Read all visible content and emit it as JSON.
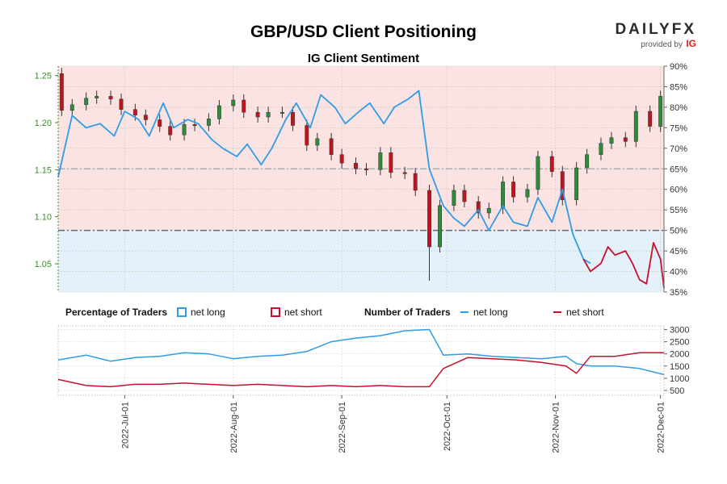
{
  "header": {
    "title": "GBP/USD Client Positioning",
    "subtitle": "IG Client Sentiment",
    "logo_text": "DAILYFX",
    "logo_provided": "provided by",
    "logo_ig": "IG"
  },
  "legend": {
    "pct_heading": "Percentage of Traders",
    "pct_long": "net long",
    "pct_short": "net short",
    "num_heading": "Number of Traders",
    "num_long": "net long",
    "num_short": "net short"
  },
  "colors": {
    "long": "#2e9ce6",
    "short": "#c8102e",
    "candle_up": "#2e8b3a",
    "candle_down": "#c0151f",
    "short_zone": "#fbe3e3",
    "long_zone": "#e4f1fb",
    "price_axis": "#3d8c2b"
  },
  "chart_data": [
    {
      "type": "candlestick+line",
      "title": "IG Client Sentiment",
      "price_axis": {
        "ticks": [
          "1.05",
          "1.10",
          "1.15",
          "1.20",
          "1.25"
        ],
        "ylim": [
          1.02,
          1.26
        ]
      },
      "pct_axis": {
        "ticks": [
          "35%",
          "40%",
          "45%",
          "50%",
          "55%",
          "60%",
          "65%",
          "70%",
          "75%",
          "80%",
          "85%",
          "90%"
        ],
        "ylim": [
          35,
          90
        ]
      },
      "reference_lines": [
        50,
        65
      ],
      "x_range": [
        "2022-06-12",
        "2022-12-02"
      ],
      "x_ticks": [
        "2022-Jul-01",
        "2022-Aug-01",
        "2022-Sep-01",
        "2022-Oct-01",
        "2022-Nov-01",
        "2022-Dec-01"
      ],
      "price_close": [
        [
          "2022-06-13",
          1.213
        ],
        [
          "2022-06-16",
          1.219
        ],
        [
          "2022-06-20",
          1.226
        ],
        [
          "2022-06-23",
          1.228
        ],
        [
          "2022-06-27",
          1.225
        ],
        [
          "2022-06-30",
          1.214
        ],
        [
          "2022-07-04",
          1.208
        ],
        [
          "2022-07-07",
          1.203
        ],
        [
          "2022-07-11",
          1.196
        ],
        [
          "2022-07-14",
          1.187
        ],
        [
          "2022-07-18",
          1.198
        ],
        [
          "2022-07-21",
          1.197
        ],
        [
          "2022-07-25",
          1.204
        ],
        [
          "2022-07-28",
          1.218
        ],
        [
          "2022-08-01",
          1.224
        ],
        [
          "2022-08-04",
          1.211
        ],
        [
          "2022-08-08",
          1.206
        ],
        [
          "2022-08-11",
          1.211
        ],
        [
          "2022-08-15",
          1.211
        ],
        [
          "2022-08-18",
          1.197
        ],
        [
          "2022-08-22",
          1.176
        ],
        [
          "2022-08-25",
          1.183
        ],
        [
          "2022-08-29",
          1.166
        ],
        [
          "2022-09-01",
          1.157
        ],
        [
          "2022-09-05",
          1.151
        ],
        [
          "2022-09-08",
          1.15
        ],
        [
          "2022-09-12",
          1.168
        ],
        [
          "2022-09-15",
          1.147
        ],
        [
          "2022-09-19",
          1.146
        ],
        [
          "2022-09-22",
          1.128
        ],
        [
          "2022-09-26",
          1.068
        ],
        [
          "2022-09-29",
          1.112
        ],
        [
          "2022-10-03",
          1.128
        ],
        [
          "2022-10-06",
          1.116
        ],
        [
          "2022-10-10",
          1.104
        ],
        [
          "2022-10-13",
          1.109
        ],
        [
          "2022-10-17",
          1.137
        ],
        [
          "2022-10-20",
          1.121
        ],
        [
          "2022-10-24",
          1.129
        ],
        [
          "2022-10-27",
          1.164
        ],
        [
          "2022-10-31",
          1.148
        ],
        [
          "2022-11-03",
          1.118
        ],
        [
          "2022-11-07",
          1.152
        ],
        [
          "2022-11-10",
          1.166
        ],
        [
          "2022-11-14",
          1.178
        ],
        [
          "2022-11-17",
          1.184
        ],
        [
          "2022-11-21",
          1.18
        ],
        [
          "2022-11-24",
          1.212
        ],
        [
          "2022-11-28",
          1.196
        ],
        [
          "2022-12-01",
          1.228
        ]
      ],
      "series": [
        {
          "name": "net long",
          "values": [
            [
              "2022-06-12",
              63
            ],
            [
              "2022-06-16",
              78
            ],
            [
              "2022-06-20",
              75
            ],
            [
              "2022-06-24",
              76
            ],
            [
              "2022-06-28",
              73
            ],
            [
              "2022-07-01",
              79
            ],
            [
              "2022-07-05",
              77
            ],
            [
              "2022-07-08",
              73
            ],
            [
              "2022-07-12",
              81
            ],
            [
              "2022-07-15",
              75
            ],
            [
              "2022-07-19",
              77
            ],
            [
              "2022-07-22",
              76
            ],
            [
              "2022-07-26",
              72
            ],
            [
              "2022-07-29",
              70
            ],
            [
              "2022-08-02",
              68
            ],
            [
              "2022-08-05",
              71
            ],
            [
              "2022-08-09",
              66
            ],
            [
              "2022-08-12",
              70
            ],
            [
              "2022-08-16",
              77
            ],
            [
              "2022-08-19",
              81
            ],
            [
              "2022-08-23",
              75
            ],
            [
              "2022-08-26",
              83
            ],
            [
              "2022-08-30",
              80
            ],
            [
              "2022-09-02",
              76
            ],
            [
              "2022-09-06",
              79
            ],
            [
              "2022-09-09",
              81
            ],
            [
              "2022-09-13",
              76
            ],
            [
              "2022-09-16",
              80
            ],
            [
              "2022-09-20",
              82
            ],
            [
              "2022-09-23",
              84
            ],
            [
              "2022-09-26",
              65
            ],
            [
              "2022-09-30",
              56
            ],
            [
              "2022-10-03",
              53
            ],
            [
              "2022-10-06",
              51
            ],
            [
              "2022-10-10",
              55
            ],
            [
              "2022-10-13",
              50
            ],
            [
              "2022-10-17",
              56
            ],
            [
              "2022-10-20",
              52
            ],
            [
              "2022-10-24",
              51
            ],
            [
              "2022-10-27",
              58
            ],
            [
              "2022-10-31",
              52
            ],
            [
              "2022-11-03",
              60
            ],
            [
              "2022-11-06",
              49
            ],
            [
              "2022-11-09",
              43
            ],
            [
              "2022-11-11",
              42
            ]
          ]
        },
        {
          "name": "net short",
          "values": [
            [
              "2022-11-09",
              43
            ],
            [
              "2022-11-11",
              40
            ],
            [
              "2022-11-14",
              42
            ],
            [
              "2022-11-16",
              46
            ],
            [
              "2022-11-18",
              44
            ],
            [
              "2022-11-21",
              45
            ],
            [
              "2022-11-23",
              42
            ],
            [
              "2022-11-25",
              38
            ],
            [
              "2022-11-27",
              37
            ],
            [
              "2022-11-29",
              47
            ],
            [
              "2022-12-01",
              43
            ],
            [
              "2022-12-02",
              36
            ]
          ]
        }
      ]
    },
    {
      "type": "line",
      "title": "Number of Traders",
      "y_axis": {
        "ticks": [
          "500",
          "1000",
          "1500",
          "2000",
          "2500",
          "3000"
        ],
        "ylim": [
          300,
          3150
        ]
      },
      "series": [
        {
          "name": "net long",
          "values": [
            [
              "2022-06-12",
              1750
            ],
            [
              "2022-06-20",
              1950
            ],
            [
              "2022-06-27",
              1700
            ],
            [
              "2022-07-04",
              1850
            ],
            [
              "2022-07-11",
              1900
            ],
            [
              "2022-07-18",
              2050
            ],
            [
              "2022-07-25",
              2000
            ],
            [
              "2022-08-01",
              1800
            ],
            [
              "2022-08-08",
              1900
            ],
            [
              "2022-08-15",
              1950
            ],
            [
              "2022-08-22",
              2100
            ],
            [
              "2022-08-29",
              2500
            ],
            [
              "2022-09-05",
              2650
            ],
            [
              "2022-09-12",
              2750
            ],
            [
              "2022-09-19",
              2950
            ],
            [
              "2022-09-26",
              3000
            ],
            [
              "2022-09-30",
              1950
            ],
            [
              "2022-10-07",
              2000
            ],
            [
              "2022-10-14",
              1900
            ],
            [
              "2022-10-21",
              1850
            ],
            [
              "2022-10-28",
              1800
            ],
            [
              "2022-11-04",
              1900
            ],
            [
              "2022-11-07",
              1600
            ],
            [
              "2022-11-11",
              1500
            ],
            [
              "2022-11-18",
              1500
            ],
            [
              "2022-11-25",
              1400
            ],
            [
              "2022-12-02",
              1150
            ]
          ]
        },
        {
          "name": "net short",
          "values": [
            [
              "2022-06-12",
              950
            ],
            [
              "2022-06-20",
              700
            ],
            [
              "2022-06-27",
              650
            ],
            [
              "2022-07-04",
              750
            ],
            [
              "2022-07-11",
              750
            ],
            [
              "2022-07-18",
              800
            ],
            [
              "2022-07-25",
              750
            ],
            [
              "2022-08-01",
              700
            ],
            [
              "2022-08-08",
              750
            ],
            [
              "2022-08-15",
              700
            ],
            [
              "2022-08-22",
              650
            ],
            [
              "2022-08-29",
              700
            ],
            [
              "2022-09-05",
              650
            ],
            [
              "2022-09-12",
              700
            ],
            [
              "2022-09-19",
              650
            ],
            [
              "2022-09-26",
              650
            ],
            [
              "2022-09-30",
              1400
            ],
            [
              "2022-10-07",
              1850
            ],
            [
              "2022-10-14",
              1800
            ],
            [
              "2022-10-21",
              1750
            ],
            [
              "2022-10-28",
              1650
            ],
            [
              "2022-11-04",
              1500
            ],
            [
              "2022-11-07",
              1200
            ],
            [
              "2022-11-11",
              1900
            ],
            [
              "2022-11-18",
              1900
            ],
            [
              "2022-11-25",
              2050
            ],
            [
              "2022-12-02",
              2050
            ]
          ]
        }
      ]
    }
  ]
}
